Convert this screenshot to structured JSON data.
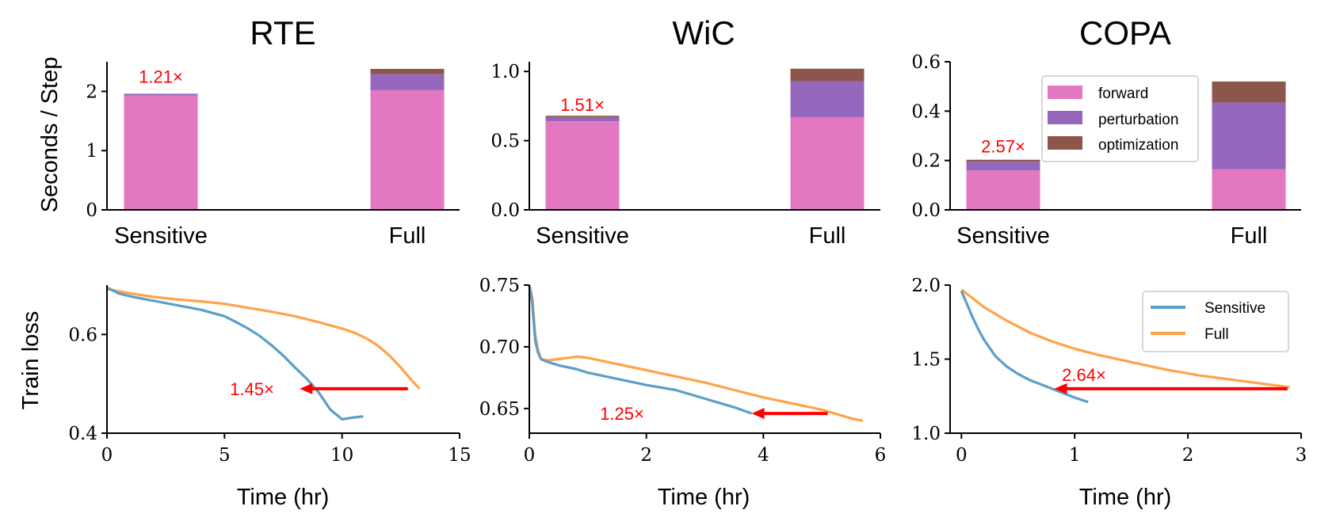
{
  "colors": {
    "forward": "#e377c2",
    "perturbation": "#9467bd",
    "optimization": "#8c564b",
    "sensitive": "#5b9ec9",
    "full": "#ffa347",
    "arrow": "#ff0000"
  },
  "chart_data": [
    {
      "type": "bar",
      "title": "RTE",
      "ylabel": "Seconds / Step",
      "xlabel": "",
      "categories": [
        "Sensitive",
        "Full"
      ],
      "ylim": [
        0,
        2.5
      ],
      "yticks": [
        "0",
        "1",
        "2"
      ],
      "series": [
        {
          "name": "forward",
          "values": [
            1.93,
            2.02
          ]
        },
        {
          "name": "perturbation",
          "values": [
            0.03,
            0.27
          ]
        },
        {
          "name": "optimization",
          "values": [
            0.0,
            0.09
          ]
        }
      ],
      "annotation": "1.21×"
    },
    {
      "type": "bar",
      "title": "WiC",
      "ylabel": "",
      "xlabel": "",
      "categories": [
        "Sensitive",
        "Full"
      ],
      "ylim": [
        0,
        1.07
      ],
      "yticks": [
        "0.0",
        "0.5",
        "1.0"
      ],
      "series": [
        {
          "name": "forward",
          "values": [
            0.64,
            0.67
          ]
        },
        {
          "name": "perturbation",
          "values": [
            0.03,
            0.26
          ]
        },
        {
          "name": "optimization",
          "values": [
            0.01,
            0.09
          ]
        }
      ],
      "annotation": "1.51×"
    },
    {
      "type": "bar",
      "title": "COPA",
      "ylabel": "",
      "xlabel": "",
      "categories": [
        "Sensitive",
        "Full"
      ],
      "ylim": [
        0,
        0.6
      ],
      "yticks": [
        "0.0",
        "0.2",
        "0.4",
        "0.6"
      ],
      "series": [
        {
          "name": "forward",
          "values": [
            0.16,
            0.165
          ]
        },
        {
          "name": "perturbation",
          "values": [
            0.035,
            0.27
          ]
        },
        {
          "name": "optimization",
          "values": [
            0.008,
            0.085
          ]
        }
      ],
      "legend_entries": [
        "forward",
        "perturbation",
        "optimization"
      ],
      "legend_position": "top-right",
      "annotation": "2.57×"
    },
    {
      "type": "line",
      "title": "",
      "ylabel": "Train loss",
      "xlabel": "Time (hr)",
      "xlim": [
        0,
        15
      ],
      "ylim": [
        0.4,
        0.7
      ],
      "xticks": [
        "0",
        "5",
        "10",
        "15"
      ],
      "yticks": [
        "0.4",
        "0.6"
      ],
      "series": [
        {
          "name": "Sensitive",
          "x": [
            0,
            0.5,
            1,
            2,
            3,
            4,
            5,
            5.5,
            6,
            6.5,
            7,
            7.5,
            8,
            8.5,
            9,
            9.5,
            10,
            10.5,
            10.9
          ],
          "y": [
            0.695,
            0.683,
            0.677,
            0.668,
            0.659,
            0.65,
            0.637,
            0.625,
            0.612,
            0.597,
            0.578,
            0.557,
            0.533,
            0.51,
            0.483,
            0.448,
            0.428,
            0.432,
            0.434
          ]
        },
        {
          "name": "Full",
          "x": [
            0,
            1,
            2,
            3,
            4,
            5,
            6,
            7,
            8,
            9,
            10,
            10.5,
            11,
            11.5,
            12,
            12.5,
            13,
            13.3
          ],
          "y": [
            0.692,
            0.683,
            0.676,
            0.671,
            0.667,
            0.662,
            0.654,
            0.646,
            0.637,
            0.625,
            0.612,
            0.604,
            0.593,
            0.578,
            0.558,
            0.533,
            0.505,
            0.49
          ]
        }
      ],
      "arrow": {
        "from": [
          12.8,
          0.49
        ],
        "to": [
          8.2,
          0.49
        ]
      },
      "annotation": "1.45×"
    },
    {
      "type": "line",
      "title": "",
      "ylabel": "",
      "xlabel": "Time (hr)",
      "xlim": [
        0,
        6
      ],
      "ylim": [
        0.63,
        0.75
      ],
      "xticks": [
        "0",
        "2",
        "4",
        "6"
      ],
      "yticks": [
        "0.65",
        "0.70",
        "0.75"
      ],
      "series": [
        {
          "name": "Sensitive",
          "x": [
            0,
            0.05,
            0.1,
            0.15,
            0.2,
            0.3,
            0.5,
            0.8,
            1,
            1.5,
            2,
            2.5,
            3,
            3.5,
            3.8
          ],
          "y": [
            0.75,
            0.735,
            0.705,
            0.695,
            0.69,
            0.688,
            0.685,
            0.682,
            0.679,
            0.674,
            0.669,
            0.665,
            0.658,
            0.651,
            0.646
          ]
        },
        {
          "name": "Full",
          "x": [
            0,
            0.05,
            0.1,
            0.15,
            0.2,
            0.3,
            0.5,
            0.8,
            1,
            1.5,
            2,
            2.5,
            3,
            3.5,
            4,
            4.5,
            5,
            5.5,
            5.7
          ],
          "y": [
            0.75,
            0.74,
            0.71,
            0.697,
            0.69,
            0.689,
            0.69,
            0.692,
            0.691,
            0.686,
            0.681,
            0.676,
            0.671,
            0.665,
            0.659,
            0.654,
            0.649,
            0.642,
            0.64
          ]
        }
      ],
      "arrow": {
        "from": [
          5.1,
          0.646
        ],
        "to": [
          3.8,
          0.646
        ]
      },
      "annotation": "1.25×"
    },
    {
      "type": "line",
      "title": "",
      "ylabel": "",
      "xlabel": "Time (hr)",
      "xlim": [
        -0.1,
        3
      ],
      "ylim": [
        1.0,
        2.0
      ],
      "xticks": [
        "0",
        "1",
        "2",
        "3"
      ],
      "yticks": [
        "1.0",
        "1.5",
        "2.0"
      ],
      "series": [
        {
          "name": "Sensitive",
          "x": [
            0,
            0.05,
            0.1,
            0.15,
            0.2,
            0.3,
            0.4,
            0.5,
            0.6,
            0.7,
            0.8,
            0.9,
            1.0,
            1.12
          ],
          "y": [
            1.96,
            1.87,
            1.78,
            1.7,
            1.63,
            1.52,
            1.45,
            1.4,
            1.36,
            1.33,
            1.3,
            1.27,
            1.24,
            1.21
          ]
        },
        {
          "name": "Full",
          "x": [
            0,
            0.2,
            0.4,
            0.6,
            0.8,
            1,
            1.2,
            1.5,
            1.8,
            2.1,
            2.4,
            2.7,
            2.9
          ],
          "y": [
            1.97,
            1.85,
            1.76,
            1.68,
            1.62,
            1.57,
            1.53,
            1.48,
            1.43,
            1.39,
            1.36,
            1.33,
            1.31
          ]
        }
      ],
      "arrow": {
        "from": [
          2.88,
          1.3
        ],
        "to": [
          0.82,
          1.3
        ]
      },
      "legend_entries": [
        "Sensitive",
        "Full"
      ],
      "legend_position": "top-right",
      "annotation": "2.64×"
    }
  ]
}
